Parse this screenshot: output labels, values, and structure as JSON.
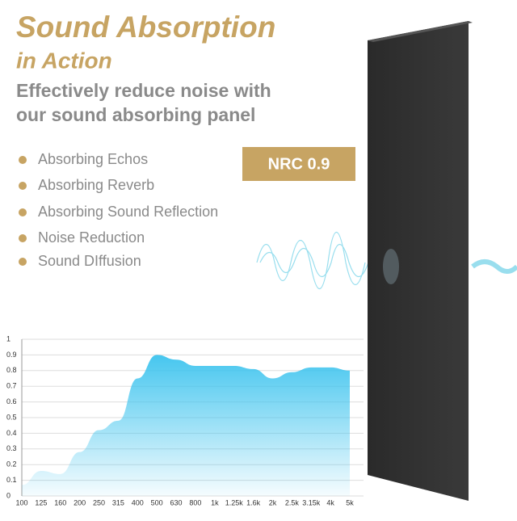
{
  "header": {
    "title": "Sound Absorption",
    "title_line2": "in Action",
    "subtitle_line1": "Effectively reduce noise with",
    "subtitle_line2": "our sound absorbing panel"
  },
  "features": [
    "Absorbing Echos",
    "Absorbing Reverb",
    "Absorbing Sound Reflection",
    "Noise Reduction",
    "Sound DIffusion"
  ],
  "badge": "NRC 0.9",
  "chart_data": {
    "type": "area",
    "color": "#3cc3ee",
    "grid": true,
    "categories": [
      "100",
      "125",
      "160",
      "200",
      "250",
      "315",
      "400",
      "500",
      "630",
      "800",
      "1k",
      "1.25k",
      "1.6k",
      "2k",
      "2.5k",
      "3.15k",
      "4k",
      "5k"
    ],
    "values": [
      0.07,
      0.16,
      0.14,
      0.28,
      0.42,
      0.48,
      0.75,
      0.9,
      0.87,
      0.83,
      0.83,
      0.83,
      0.81,
      0.75,
      0.79,
      0.82,
      0.82,
      0.8
    ],
    "ylim": [
      0,
      1
    ],
    "yticks": [
      0,
      0.1,
      0.2,
      0.3,
      0.4,
      0.5,
      0.6,
      0.7,
      0.8,
      0.9,
      1
    ]
  }
}
